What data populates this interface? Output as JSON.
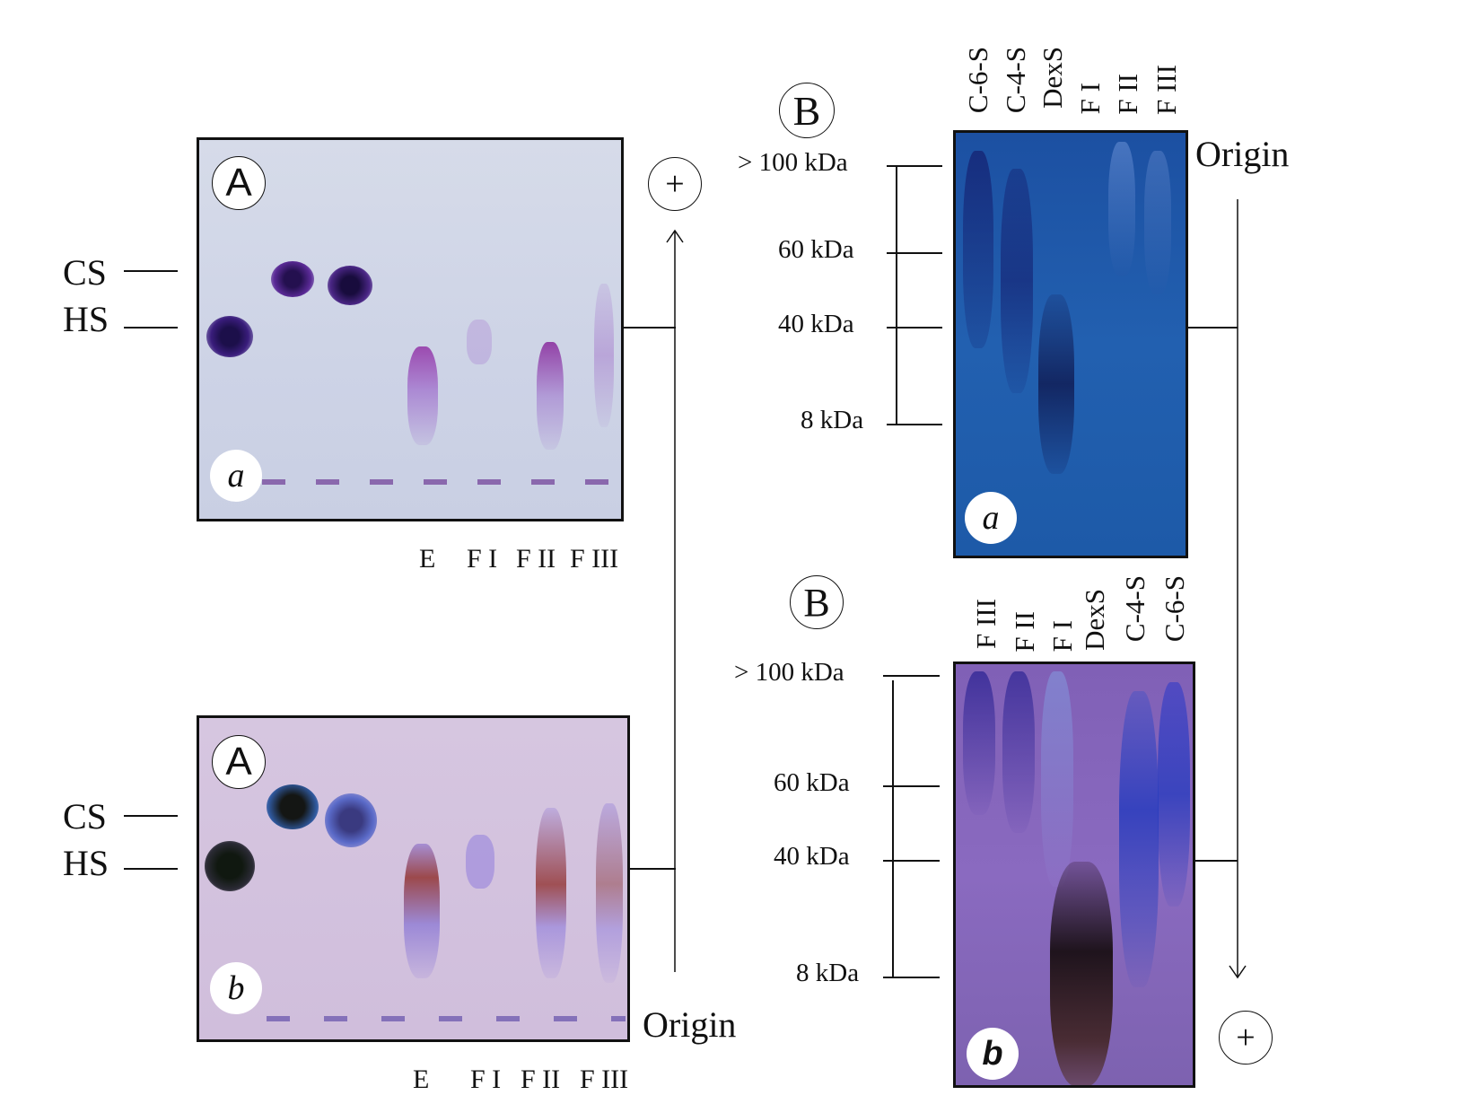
{
  "panel_A": {
    "letter": "A",
    "band_labels": [
      "CS",
      "HS"
    ],
    "plus_symbol": "+",
    "origin_label": "Origin",
    "gel_a": {
      "sublabel": "a",
      "lane_labels": [
        "E",
        "F I",
        "F II",
        "F III"
      ]
    },
    "gel_b": {
      "sublabel": "b",
      "lane_labels": [
        "E",
        "F I",
        "F II",
        "F III"
      ]
    }
  },
  "panel_B": {
    "letter": "B",
    "origin_label": "Origin",
    "plus_symbol": "+",
    "gel_a": {
      "sublabel": "a",
      "lane_labels": [
        "C-6-S",
        "C-4-S",
        "DexS",
        "F I",
        "F II",
        "F III"
      ],
      "mw_markers": [
        "> 100 kDa",
        "60 kDa",
        "40 kDa",
        "8 kDa"
      ]
    },
    "gel_b": {
      "sublabel": "b",
      "lane_labels": [
        "F III",
        "F II",
        "F I",
        "DexS",
        "C-4-S",
        "C-6-S"
      ],
      "mw_markers": [
        "> 100 kDa",
        "60 kDa",
        "40 kDa",
        "8 kDa"
      ]
    }
  },
  "colors": {
    "gel_Aa_bg": "#cfd5e6",
    "gel_Ab_bg": "#d3c2de",
    "gel_Ba_bg": "#1f5aa6",
    "gel_Bb_bg": "#8a6cc0"
  }
}
